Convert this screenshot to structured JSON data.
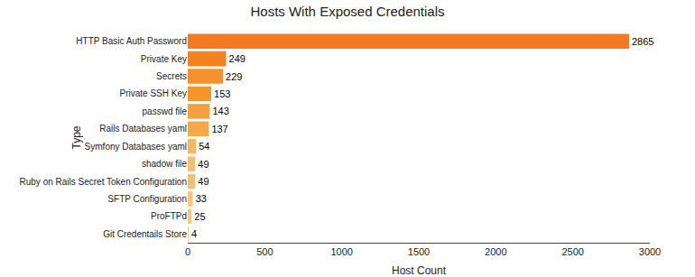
{
  "chart_data": {
    "type": "bar",
    "orientation": "horizontal",
    "title": "Hosts With Exposed Credentials",
    "xlabel": "Host Count",
    "ylabel": "Type",
    "categories": [
      "HTTP Basic Auth Password",
      "Private Key",
      "Secrets",
      "Private SSH Key",
      "passwd file",
      "Rails Databases yaml",
      "Symfony Databases yaml",
      "shadow file",
      "Ruby on Rails Secret Token Configuration",
      "SFTP Configuration",
      "ProFTPd",
      "Git Credentails Store"
    ],
    "values": [
      2865,
      249,
      229,
      153,
      143,
      137,
      54,
      49,
      49,
      33,
      25,
      4
    ],
    "colors": [
      "#f47920",
      "#f4821e",
      "#f49030",
      "#f4972a",
      "#f4a040",
      "#f4a848",
      "#f4b860",
      "#f4c070",
      "#f4c070",
      "#f4c878",
      "#f4c878",
      "#f4d090"
    ],
    "xlim": [
      0,
      3000
    ],
    "xticks": [
      0,
      500,
      1000,
      1500,
      2000,
      2500,
      3000
    ],
    "data_labels": true,
    "grid": false
  }
}
